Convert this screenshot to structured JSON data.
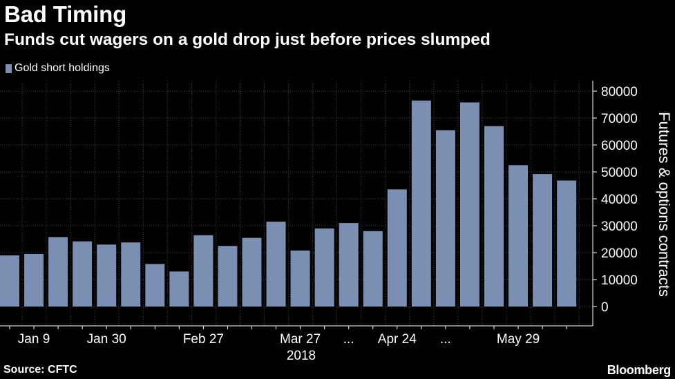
{
  "header": {
    "title": "Bad Timing",
    "subtitle": "Funds cut wagers on a gold drop just before prices slumped"
  },
  "legend": {
    "label": "Gold short holdings"
  },
  "footer": {
    "source": "Source: CFTC",
    "brand": "Bloomberg"
  },
  "colors": {
    "background": "#000000",
    "bar": "#7b8fb3",
    "grid": "#444444",
    "text": "#ffffff"
  },
  "chart_data": {
    "type": "bar",
    "title": "Bad Timing",
    "subtitle": "Funds cut wagers on a gold drop just before prices slumped",
    "ylabel": "Futures & options contracts",
    "xlabel": "",
    "ylim": [
      0,
      80000
    ],
    "yticks": [
      0,
      10000,
      20000,
      30000,
      40000,
      50000,
      60000,
      70000,
      80000
    ],
    "grid": true,
    "legend_position": "top-left",
    "x_ticks": [
      {
        "bar": 1,
        "label": "Jan 9"
      },
      {
        "bar": 4,
        "label": "Jan 30"
      },
      {
        "bar": 8,
        "label": "Feb 27"
      },
      {
        "bar": 12,
        "label": "Mar 27"
      },
      {
        "bar": 14,
        "label": "..."
      },
      {
        "bar": 16,
        "label": "Apr 24"
      },
      {
        "bar": 18,
        "label": "..."
      },
      {
        "bar": 21,
        "label": "May 29"
      }
    ],
    "year_label": "2018",
    "series": [
      {
        "name": "Gold short holdings",
        "values": [
          19000,
          19500,
          25800,
          24200,
          23000,
          23800,
          15800,
          13000,
          26500,
          22500,
          25500,
          31500,
          20800,
          29000,
          31000,
          28000,
          43500,
          76500,
          65500,
          75800,
          67000,
          52500,
          49200,
          46800
        ]
      }
    ]
  }
}
